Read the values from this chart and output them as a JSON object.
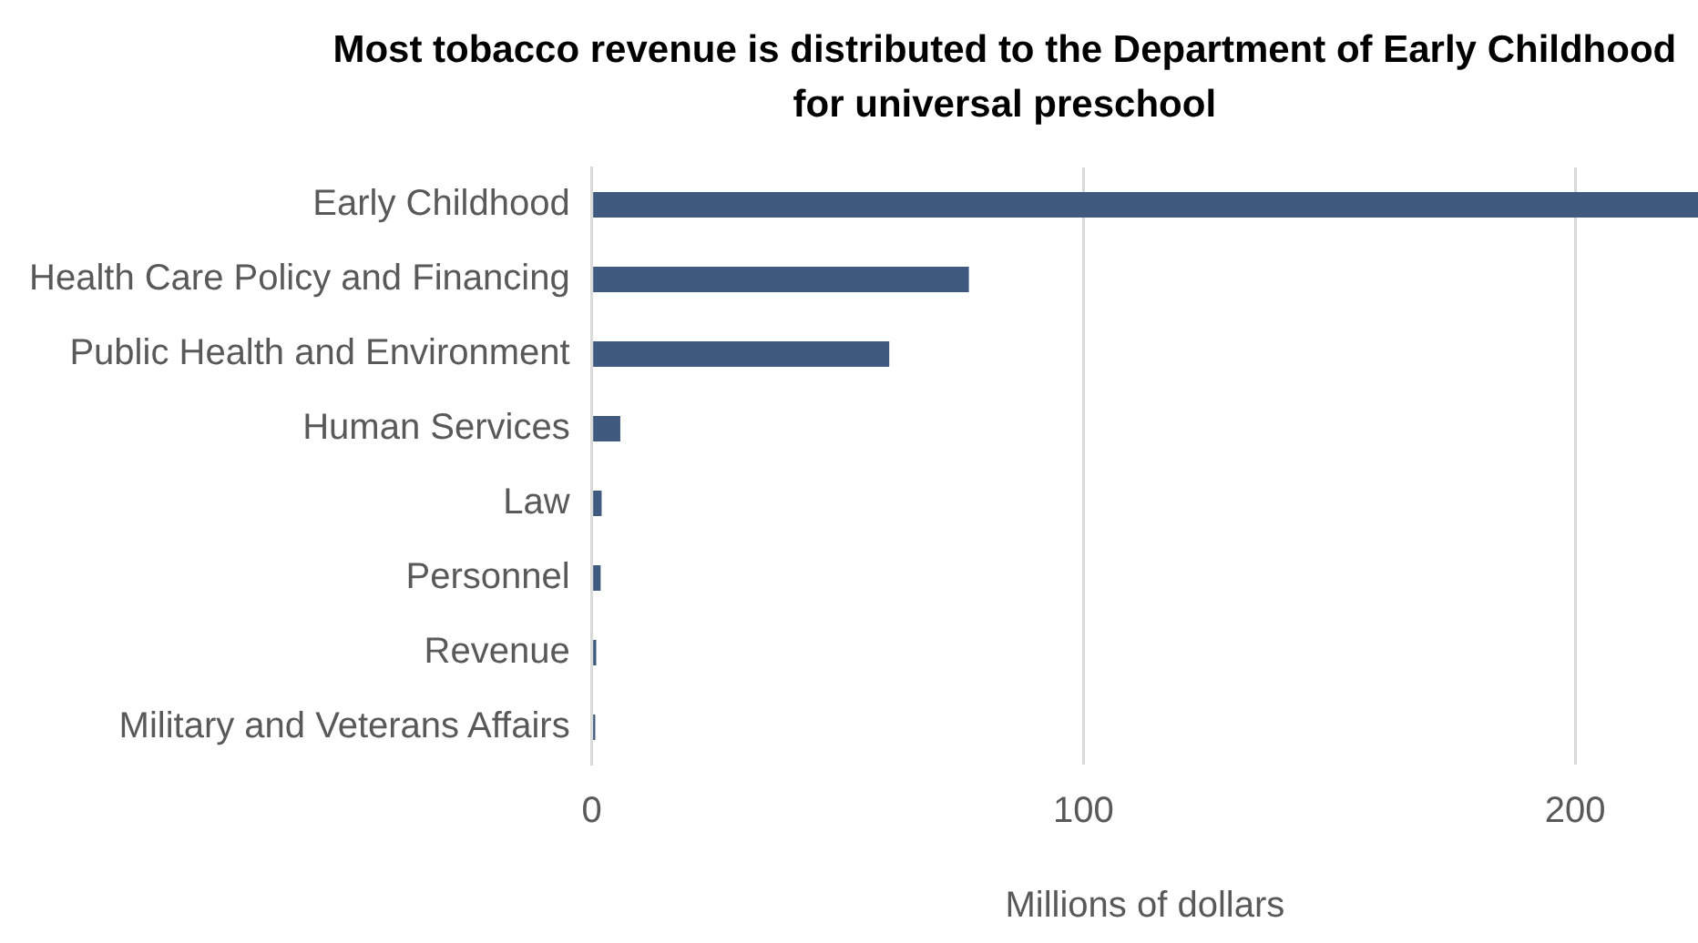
{
  "chart_data": {
    "type": "bar",
    "orientation": "horizontal",
    "title": "Most tobacco revenue is distributed to the Department of Early Childhood for universal preschool",
    "categories": [
      "Early Childhood",
      "Health Care Policy and Financing",
      "Public Health and Environment",
      "Human Services",
      "Law",
      "Personnel",
      "Revenue",
      "Military and Veterans Affairs"
    ],
    "values": [
      225,
      76.7,
      60.5,
      5.8,
      2.0,
      1.8,
      0.9,
      0.7
    ],
    "color": "#3f5a7e",
    "xlabel": "Millions of dollars",
    "xlim": [
      0,
      225
    ],
    "xticks": [
      0,
      100,
      200
    ],
    "grid": "x",
    "legend": false
  }
}
